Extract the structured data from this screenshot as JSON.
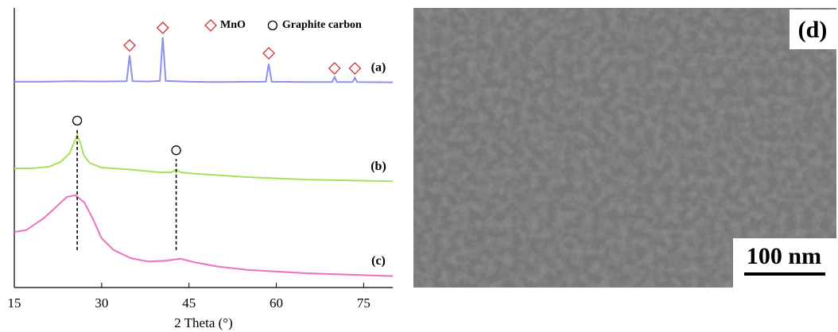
{
  "chart_data": {
    "type": "line",
    "xlabel": "2 Theta (°)",
    "xlim": [
      15,
      80
    ],
    "xticks": [
      15,
      30,
      45,
      60,
      75
    ],
    "ylim": [
      0,
      100
    ],
    "series": [
      {
        "name": "(a)",
        "color": "#8c8ff2",
        "x": [
          15,
          20,
          25,
          30,
          34.3,
          34.8,
          35.3,
          38,
          40.0,
          40.5,
          41.0,
          45,
          50,
          58.2,
          58.7,
          59.2,
          65,
          69.6,
          70.0,
          70.4,
          73.1,
          73.5,
          73.9,
          80
        ],
        "values": [
          73.6,
          73.6,
          73.8,
          73.7,
          73.8,
          83,
          73.8,
          73.7,
          73.9,
          89.5,
          73.9,
          73.6,
          73.5,
          73.6,
          80,
          73.6,
          73.5,
          73.5,
          75.3,
          73.5,
          73.5,
          75.0,
          73.5,
          73.4
        ]
      },
      {
        "name": "(b)",
        "color": "#a8e05a",
        "x": [
          15,
          18,
          21,
          23,
          24.5,
          25.3,
          25.8,
          26.3,
          27,
          28,
          30,
          35,
          40,
          42,
          42.8,
          43.6,
          46,
          55,
          65,
          80
        ],
        "values": [
          42.6,
          42.6,
          43.2,
          45,
          48,
          52,
          54.5,
          52,
          47,
          44.5,
          42.9,
          42.2,
          41.2,
          41.2,
          42.2,
          41.2,
          40.7,
          39.5,
          38.6,
          38.0
        ]
      },
      {
        "name": "(c)",
        "color": "#f070c0",
        "x": [
          15,
          17,
          20,
          22,
          24,
          25.5,
          27,
          28.5,
          30,
          32,
          35,
          38,
          41,
          43.5,
          46,
          50,
          55,
          65,
          80
        ],
        "values": [
          19.9,
          20.5,
          24.7,
          28.5,
          32.4,
          33,
          30.5,
          24.5,
          17.6,
          13.5,
          10.5,
          9.3,
          9.6,
          10.3,
          9,
          7.5,
          6.3,
          5.1,
          4.1
        ]
      }
    ],
    "legend": [
      {
        "name": "MnO",
        "shape": "diamond",
        "color": "#d03030"
      },
      {
        "name": "Graphite carbon",
        "shape": "circle",
        "color": "#000000"
      }
    ],
    "peak_markers": [
      {
        "shape": "diamond",
        "x": 34.8,
        "y": 86.6
      },
      {
        "shape": "diamond",
        "x": 40.5,
        "y": 92.9
      },
      {
        "shape": "diamond",
        "x": 58.7,
        "y": 83.8
      },
      {
        "shape": "diamond",
        "x": 70.0,
        "y": 78.4
      },
      {
        "shape": "diamond",
        "x": 73.5,
        "y": 78.4
      },
      {
        "shape": "circle",
        "x": 25.8,
        "y": 59.7
      },
      {
        "shape": "circle",
        "x": 42.8,
        "y": 49.1
      }
    ],
    "guide_lines": [
      {
        "x": 25.8,
        "from": 13.4,
        "to": 56.5
      },
      {
        "x": 42.8,
        "from": 13.4,
        "to": 46
      }
    ]
  },
  "image_panel": {
    "label": "(d)",
    "scale_bar": "100 nm"
  }
}
